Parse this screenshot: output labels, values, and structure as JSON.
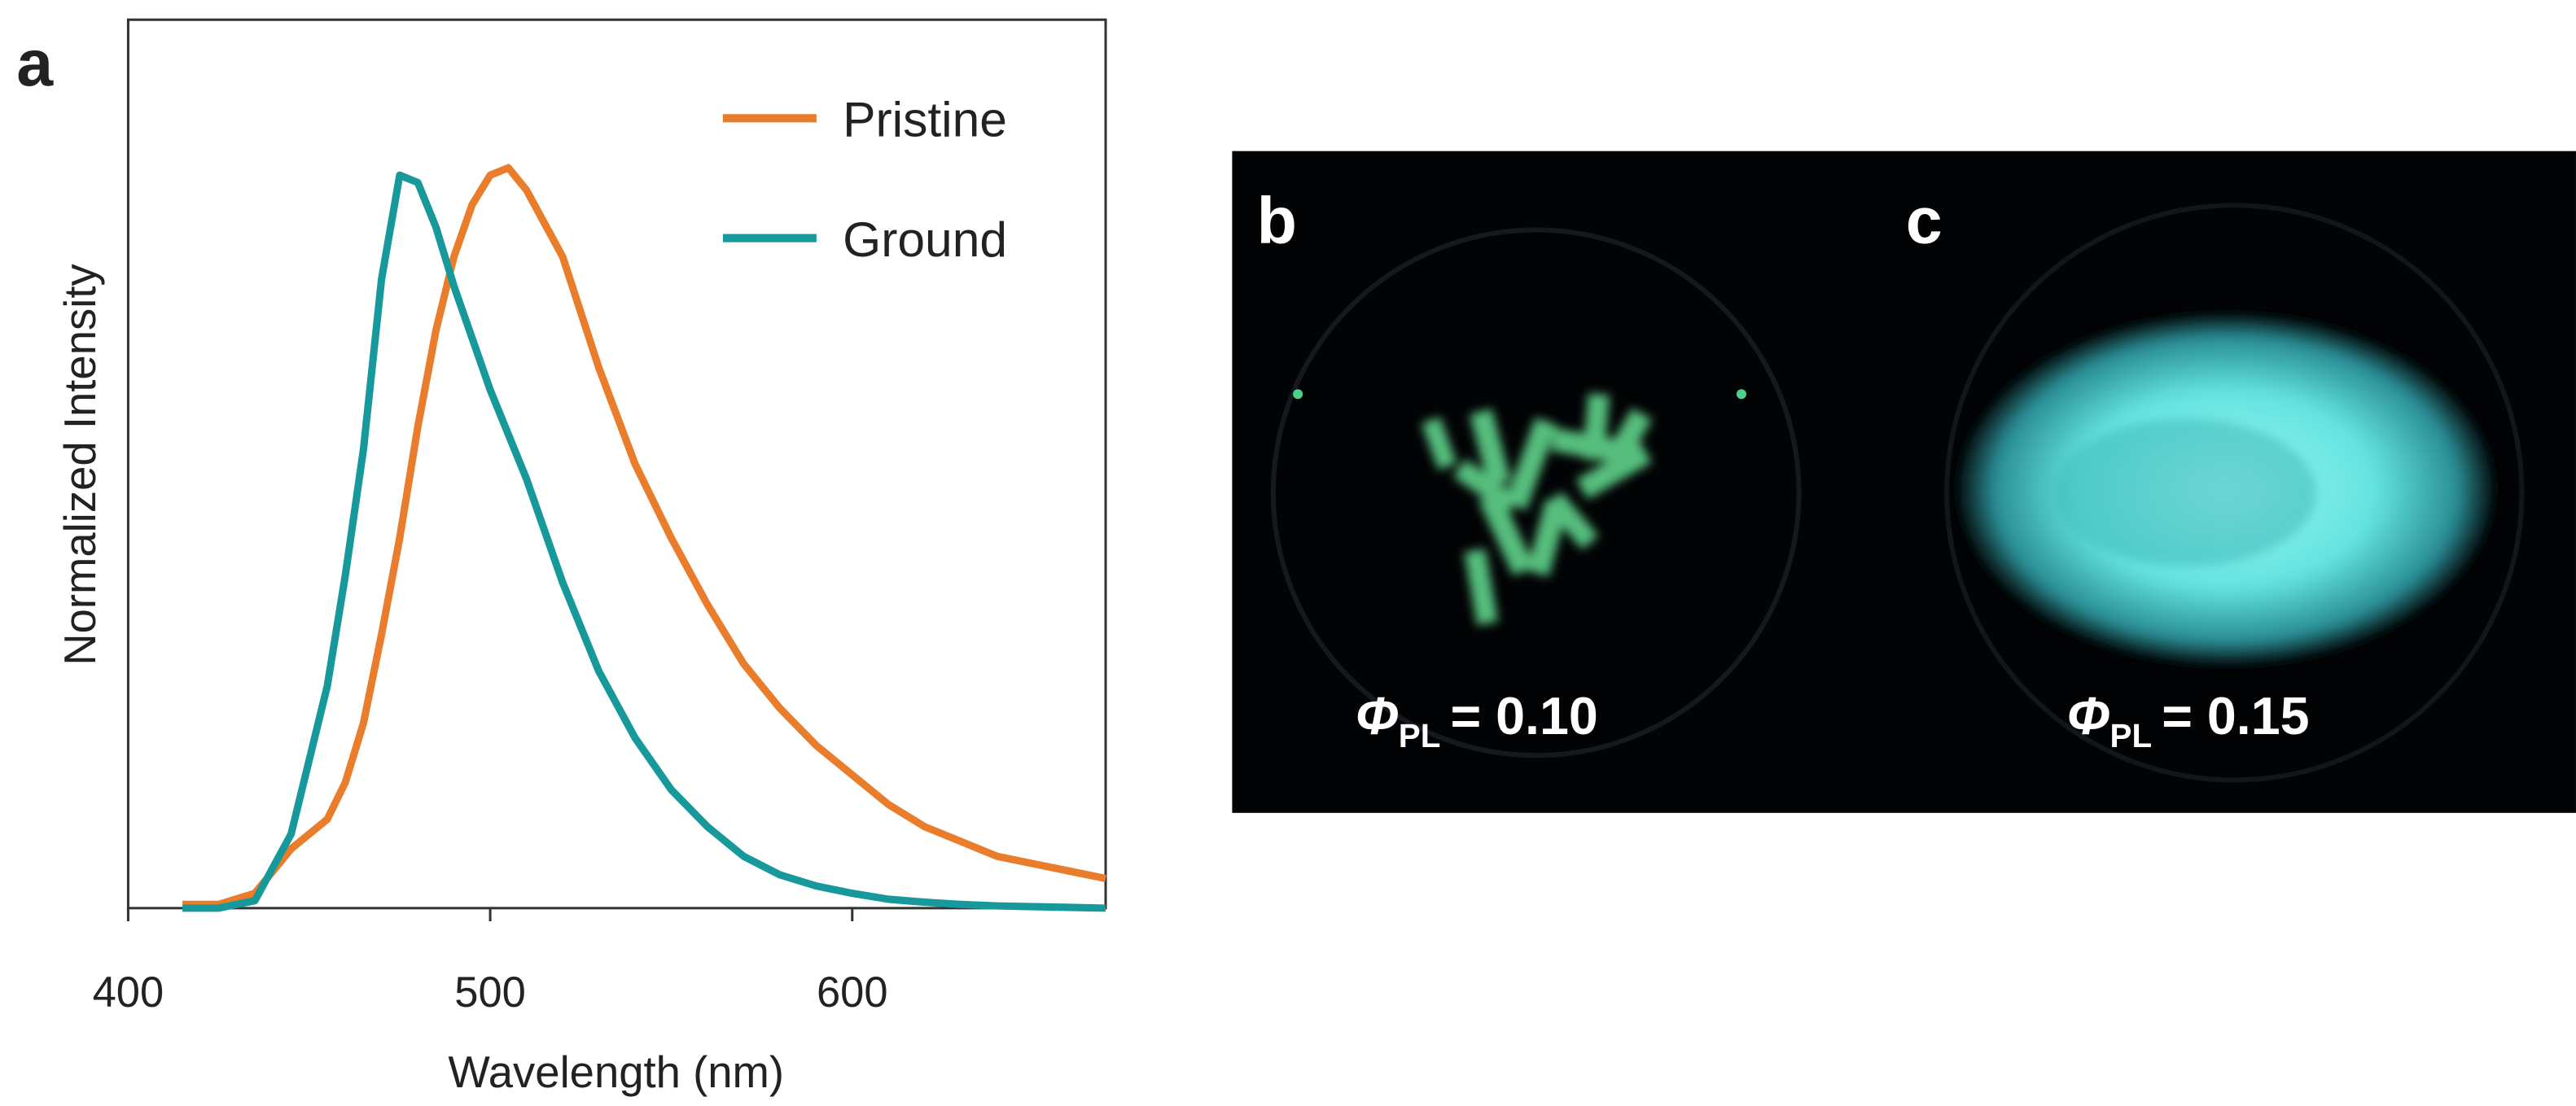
{
  "chart_data": {
    "type": "line",
    "xlabel": "Wavelength (nm)",
    "ylabel": "Normalized Intensity",
    "x": [
      415,
      425,
      435,
      445,
      455,
      460,
      465,
      470,
      475,
      480,
      485,
      490,
      495,
      500,
      505,
      510,
      520,
      530,
      540,
      550,
      560,
      570,
      580,
      590,
      600,
      610,
      620,
      630,
      640,
      650,
      660,
      670
    ],
    "series": [
      {
        "name": "Pristine",
        "color": "#ea7d2c",
        "values": [
          0.005,
          0.005,
          0.02,
          0.08,
          0.12,
          0.17,
          0.25,
          0.37,
          0.5,
          0.65,
          0.78,
          0.88,
          0.95,
          0.99,
          1.0,
          0.97,
          0.88,
          0.73,
          0.6,
          0.5,
          0.41,
          0.33,
          0.27,
          0.22,
          0.18,
          0.14,
          0.11,
          0.09,
          0.07,
          0.06,
          0.05,
          0.04
        ]
      },
      {
        "name": "Ground",
        "color": "#17999b",
        "values": [
          0,
          0,
          0.01,
          0.1,
          0.3,
          0.45,
          0.62,
          0.85,
          0.99,
          0.98,
          0.92,
          0.84,
          0.77,
          0.7,
          0.64,
          0.58,
          0.44,
          0.32,
          0.23,
          0.16,
          0.11,
          0.07,
          0.045,
          0.03,
          0.02,
          0.012,
          0.008,
          0.005,
          0.003,
          0.002,
          0.001,
          0
        ]
      }
    ],
    "xlim": [
      400,
      670
    ],
    "ylim": [
      0,
      1.2
    ],
    "xticks": [
      400,
      500,
      600
    ],
    "legend": "upper-right",
    "grid": false
  },
  "panels": {
    "a": "a",
    "b": "b",
    "c": "c"
  },
  "annotations": [
    {
      "symbol": "Φ",
      "subscript": "PL",
      "text": "= 0.10"
    },
    {
      "symbol": "Φ",
      "subscript": "PL",
      "text": "= 0.15"
    }
  ]
}
